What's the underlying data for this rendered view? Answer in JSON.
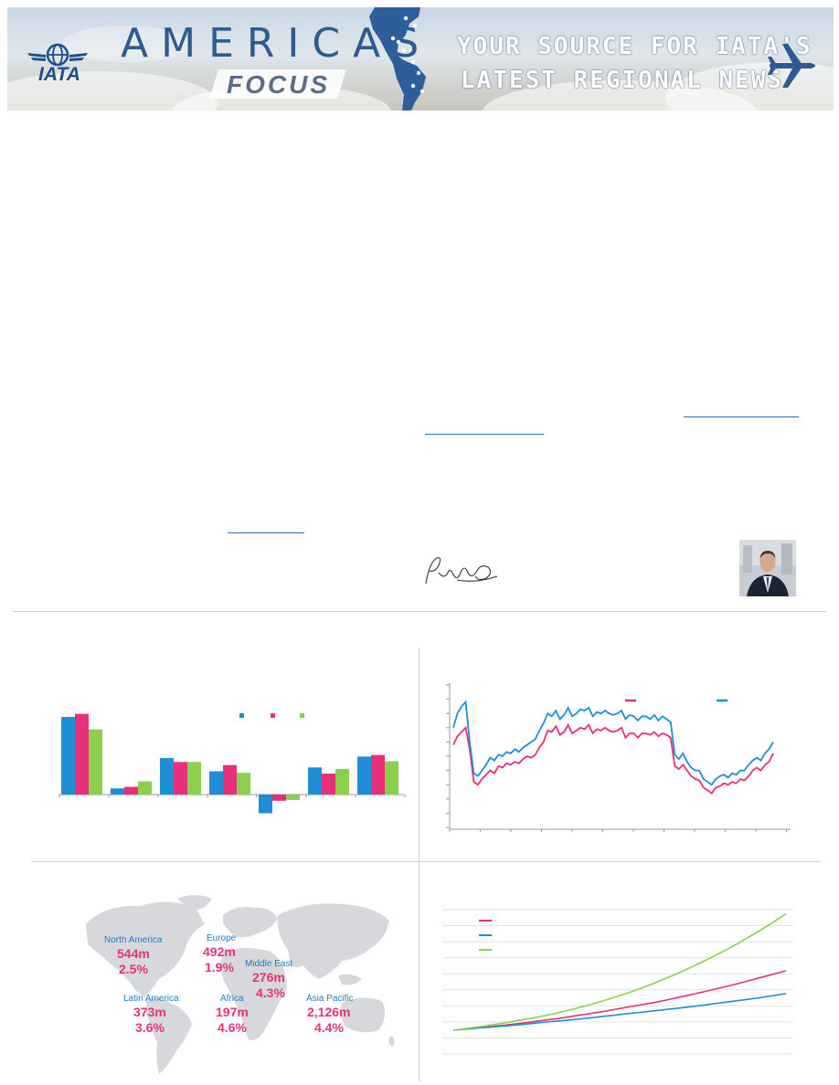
{
  "banner": {
    "title": "AMERICAS",
    "subtitle": "FOCUS",
    "logo_text": "IATA",
    "tagline_line1": "YOUR SOURCE FOR IATA'S",
    "tagline_line2": "LATEST REGIONAL NEWS",
    "brand_color": "#2e5a92",
    "icons": [
      "globe-wings-icon",
      "map-pin-icon",
      "airplane-icon"
    ]
  },
  "article": {
    "links": [
      "",
      "",
      ""
    ],
    "signature_icon": "handwritten-signature",
    "photo_icon": "portrait-photo"
  },
  "charts": [
    {
      "type": "bar",
      "title": "",
      "categories": [
        "",
        "",
        "",
        "",
        "",
        "",
        ""
      ],
      "series": [
        {
          "color": "#1e8fd6",
          "values": [
            100,
            8,
            47,
            30,
            -24,
            35,
            49
          ]
        },
        {
          "color": "#e8307a",
          "values": [
            104,
            10,
            42,
            38,
            -8,
            27,
            51
          ]
        },
        {
          "color": "#8ccf4d",
          "values": [
            84,
            17,
            42,
            28,
            -7,
            33,
            43
          ]
        }
      ],
      "legend_position": "top-right"
    },
    {
      "type": "line",
      "title": "",
      "series": [
        {
          "color": "#e8307a",
          "values": [
            58,
            64,
            67,
            70,
            55,
            32,
            30,
            34,
            37,
            40,
            38,
            43,
            42,
            45,
            44,
            46,
            45,
            48,
            50,
            49,
            51,
            56,
            60,
            68,
            67,
            71,
            65,
            67,
            72,
            66,
            68,
            70,
            69,
            72,
            66,
            69,
            68,
            70,
            68,
            67,
            68,
            70,
            63,
            66,
            66,
            63,
            66,
            66,
            65,
            67,
            64,
            66,
            65,
            63,
            43,
            41,
            44,
            40,
            36,
            34,
            33,
            28,
            26,
            24,
            28,
            29,
            31,
            30,
            32,
            31,
            34,
            33,
            36,
            40,
            42,
            40,
            44,
            46,
            52
          ]
        },
        {
          "color": "#1e8fd6",
          "values": [
            70,
            80,
            85,
            88,
            60,
            38,
            36,
            40,
            44,
            49,
            47,
            51,
            50,
            53,
            52,
            55,
            53,
            56,
            58,
            60,
            62,
            68,
            73,
            80,
            78,
            82,
            76,
            79,
            84,
            78,
            80,
            83,
            82,
            84,
            78,
            81,
            80,
            82,
            80,
            79,
            80,
            82,
            76,
            79,
            78,
            75,
            78,
            78,
            76,
            79,
            75,
            78,
            76,
            74,
            51,
            48,
            52,
            46,
            42,
            40,
            40,
            34,
            32,
            30,
            34,
            36,
            37,
            35,
            38,
            37,
            40,
            40,
            44,
            47,
            49,
            47,
            52,
            55,
            60
          ]
        }
      ],
      "grid": false,
      "legend_position": "top-right"
    },
    {
      "type": "line",
      "title": "",
      "series": [
        {
          "color": "#e8307a",
          "values": [
            0,
            4,
            9,
            13,
            18,
            23,
            29,
            35,
            41,
            48,
            55,
            62,
            70,
            78,
            86,
            94,
            103,
            113,
            123,
            133,
            144,
            155,
            167,
            179,
            191,
            203
          ]
        },
        {
          "color": "#1e8fd6",
          "values": [
            0,
            4,
            8,
            11,
            15,
            19,
            23,
            28,
            32,
            36,
            41,
            46,
            51,
            56,
            61,
            66,
            71,
            76,
            81,
            87,
            93,
            99,
            105,
            111,
            118,
            125
          ]
        },
        {
          "color": "#8ccf4d",
          "values": [
            0,
            6,
            12,
            19,
            26,
            34,
            42,
            51,
            61,
            72,
            84,
            97,
            111,
            126,
            142,
            159,
            178,
            197,
            218,
            240,
            263,
            287,
            313,
            340,
            368,
            398
          ]
        }
      ],
      "grid": true,
      "legend_position": "top-left"
    }
  ],
  "world_map": {
    "regions": [
      {
        "name": "North America",
        "passengers": "544m",
        "growth": "2.5%"
      },
      {
        "name": "Europe",
        "passengers": "492m",
        "growth": "1.9%"
      },
      {
        "name": "Middle East",
        "passengers": "276m",
        "growth": "4.3%"
      },
      {
        "name": "Latin America",
        "passengers": "373m",
        "growth": "3.6%"
      },
      {
        "name": "Africa",
        "passengers": "197m",
        "growth": "4.6%"
      },
      {
        "name": "Asia Pacific",
        "passengers": "2,126m",
        "growth": "4.4%"
      }
    ],
    "label_color": "#1a7fc4",
    "value_color": "#e6337a"
  }
}
